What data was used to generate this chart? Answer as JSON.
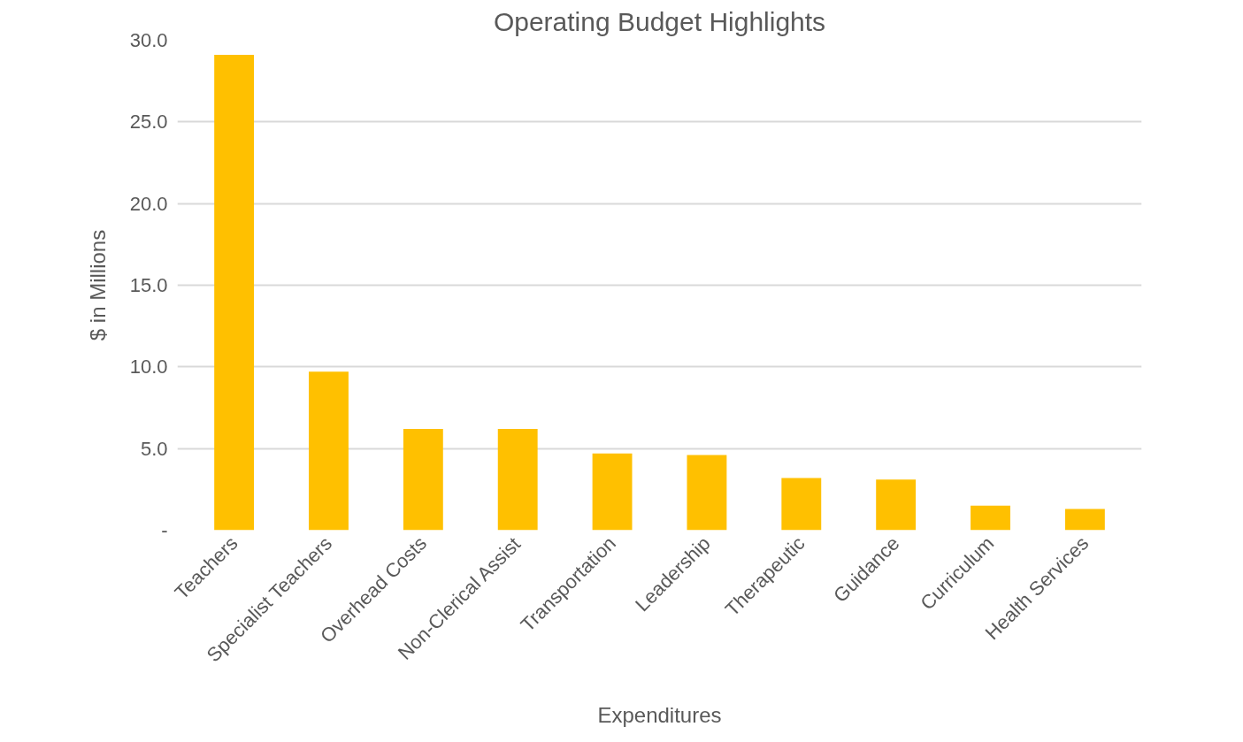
{
  "chart_data": {
    "type": "bar",
    "title": "Operating Budget Highlights",
    "xlabel": "Expenditures",
    "ylabel": "$ in Millions",
    "categories": [
      "Teachers",
      "Specialist Teachers",
      "Overhead Costs",
      "Non-Clerical Assist",
      "Transportation",
      "Leadership",
      "Therapeutic",
      "Guidance",
      "Curriculum",
      "Health Services"
    ],
    "values": [
      29.1,
      9.7,
      6.2,
      6.2,
      4.7,
      4.6,
      3.2,
      3.1,
      1.5,
      1.3
    ],
    "color": "#ffc000",
    "ylim": [
      0,
      30
    ],
    "yticks": [
      {
        "value": 0,
        "label": "-"
      },
      {
        "value": 5,
        "label": "5.0"
      },
      {
        "value": 10,
        "label": "10.0"
      },
      {
        "value": 15,
        "label": "15.0"
      },
      {
        "value": 20,
        "label": "20.0"
      },
      {
        "value": 25,
        "label": "25.0"
      },
      {
        "value": 30,
        "label": "30.0"
      }
    ],
    "grid": "y"
  }
}
